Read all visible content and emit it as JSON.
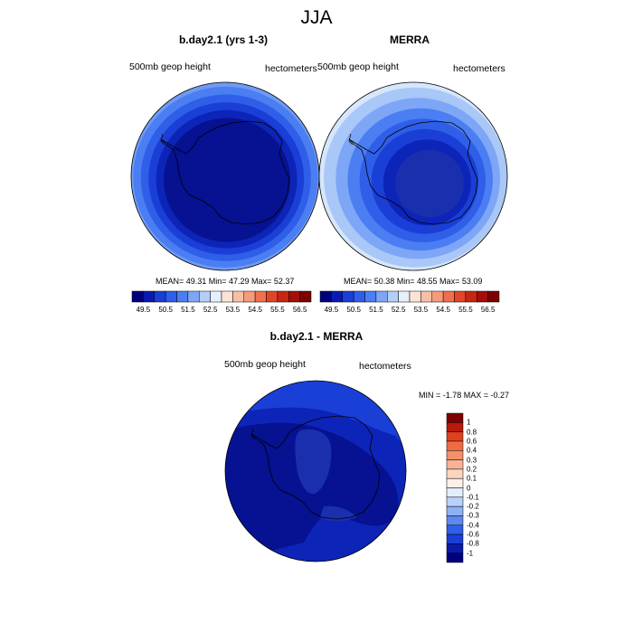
{
  "figure": {
    "title": "JJA"
  },
  "panels": [
    {
      "title": "b.day2.1 (yrs 1-3)",
      "left_label": "500mb geop height",
      "right_label": "hectometers",
      "stats": "MEAN=  49.31  Min=  47.29  Max=  52.37"
    },
    {
      "title": "MERRA",
      "left_label": "500mb geop height",
      "right_label": "hectometers",
      "stats": "MEAN=  50.38  Min=  48.55  Max=  53.09"
    },
    {
      "title": "b.day2.1 - MERRA",
      "left_label": "500mb geop height",
      "right_label": "hectometers",
      "stats": "MIN =  -1.78 MAX =  -0.27"
    }
  ],
  "colorbar_abs": {
    "tick_labels": [
      "49.5",
      "50.5",
      "51.5",
      "52.5",
      "53.5",
      "54.5",
      "55.5",
      "56.5"
    ],
    "colors": [
      "#00007f",
      "#0a1ab0",
      "#1a3fd6",
      "#2f5ee8",
      "#4a7ef2",
      "#7ea6f7",
      "#b4cef9",
      "#e6f0fd",
      "#fde3d6",
      "#f9bfa6",
      "#f59a7a",
      "#ef6f4f",
      "#e24627",
      "#c92612",
      "#a30f08",
      "#7f0000"
    ]
  },
  "colorbar_diff": {
    "tick_labels": [
      "1",
      "0.8",
      "0.6",
      "0.4",
      "0.3",
      "0.2",
      "0.1",
      "0",
      "-0.1",
      "-0.2",
      "-0.3",
      "-0.4",
      "-0.6",
      "-0.8",
      "-1"
    ],
    "colors": [
      "#7f0000",
      "#b81a0c",
      "#e0401e",
      "#f06a45",
      "#f4906c",
      "#f8b395",
      "#fbd4c0",
      "#fdf0e8",
      "#e3eefc",
      "#b9d0f8",
      "#8fb1f4",
      "#5f88ee",
      "#2f5ee8",
      "#1a3fd6",
      "#0a1ab0",
      "#00007f"
    ]
  },
  "map_colors": {
    "panel1": [
      "#6f9af4",
      "#4a7ef2",
      "#2f5ee8",
      "#1a3fd6",
      "#0d24b8",
      "#061291"
    ],
    "panel2": [
      "#d6e6fb",
      "#a9c7f7",
      "#7ea6f7",
      "#4a7ef2",
      "#2f5ee8",
      "#1a3fd6",
      "#0d24b8",
      "#1a2fae"
    ],
    "panel3": [
      "#1a3fd6",
      "#0d24b8",
      "#061291",
      "#1a2fae"
    ]
  }
}
